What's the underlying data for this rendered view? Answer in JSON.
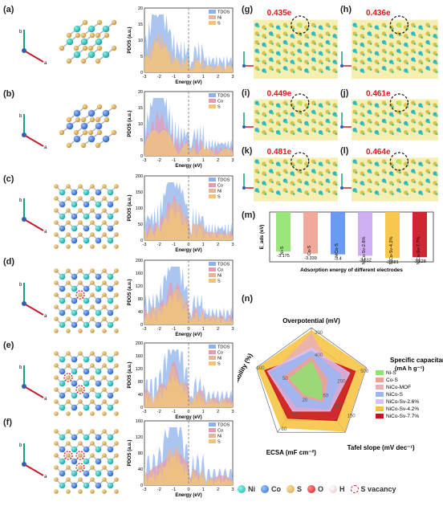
{
  "panel_labels": [
    "(a)",
    "(b)",
    "(c)",
    "(d)",
    "(e)",
    "(f)",
    "(g)",
    "(h)",
    "(i)",
    "(j)",
    "(k)",
    "(l)",
    "(m)",
    "(n)"
  ],
  "axes_labels": {
    "b": "b",
    "a": "a",
    "c": "c"
  },
  "pdos": {
    "ylabel": "PDOS (a.u.)",
    "xlabel": "Energy (eV)",
    "xticks": [
      "-3",
      "-2",
      "-1",
      "0",
      "1",
      "2",
      "3"
    ],
    "panels": [
      {
        "legend": [
          "TDOS",
          "Ni",
          "S"
        ],
        "yticks": [
          "0",
          "5",
          "10",
          "15",
          "20"
        ]
      },
      {
        "legend": [
          "TDOS",
          "Co",
          "S"
        ],
        "yticks": [
          "0",
          "5",
          "10",
          "15",
          "20"
        ]
      },
      {
        "legend": [
          "TDOS",
          "Co",
          "Ni",
          "S"
        ],
        "yticks": [
          "0",
          "50",
          "100",
          "150",
          "200"
        ]
      },
      {
        "legend": [
          "TDOS",
          "Co",
          "Ni",
          "S"
        ],
        "yticks": [
          "0",
          "40",
          "80",
          "120",
          "160",
          "200"
        ]
      },
      {
        "legend": [
          "TDOS",
          "Co",
          "Ni",
          "S"
        ],
        "yticks": [
          "0",
          "40",
          "80",
          "120",
          "160",
          "200"
        ]
      },
      {
        "legend": [
          "TDOS",
          "Co",
          "Ni",
          "S"
        ],
        "yticks": [
          "0",
          "40",
          "80",
          "120",
          "160"
        ]
      }
    ]
  },
  "charge": [
    {
      "panel": "(g)",
      "value": "0.435e"
    },
    {
      "panel": "(h)",
      "value": "0.436e"
    },
    {
      "panel": "(i)",
      "value": "0.449e"
    },
    {
      "panel": "(j)",
      "value": "0.461e"
    },
    {
      "panel": "(k)",
      "value": "0.481e"
    },
    {
      "panel": "(l)",
      "value": "0.464e"
    }
  ],
  "chart_data": [
    {
      "type": "bar",
      "title": "",
      "xlabel": "Adsorption energy of different electrodes",
      "ylabel": "E_ads (eV)",
      "categories": [
        "Ni-S",
        "Co-S",
        "NiCo-S",
        "NiCo-Sv-2.6%",
        "NiCo-Sv-4.2%",
        "NiCo-Sv-7.7%"
      ],
      "values": [
        -3.175,
        -3.339,
        -3.4,
        -3.512,
        -3.681,
        -3.628
      ],
      "value_labels": [
        "-3.175",
        "-3.339",
        "-3.4",
        "-3.512",
        "-3.681",
        "-3.628"
      ],
      "colors": [
        "#8fe36f",
        "#f0a090",
        "#5b8ff0",
        "#c9a6f0",
        "#f7c13b",
        "#c8101e"
      ]
    },
    {
      "type": "radar",
      "axes": [
        "Overpotential (mV)",
        "Specific capacitance (mA h g⁻¹)",
        "Tafel slope (mV dec⁻¹)",
        "ECSA (mF cm⁻²)",
        "Stability (%)"
      ],
      "tick_labels": {
        "overpotential": [
          "300",
          "400"
        ],
        "capacitance": [
          "200",
          "500"
        ],
        "tafel": [
          "50",
          "100",
          "150"
        ],
        "ecsa": [
          "20",
          "40",
          "60"
        ],
        "stability": [
          "50",
          "100"
        ]
      },
      "series": [
        {
          "name": "Ni-S",
          "color": "#8fe36f",
          "values": [
            0.42,
            0.18,
            0.3,
            0.2,
            0.4
          ]
        },
        {
          "name": "Co-S",
          "color": "#f0a090",
          "values": [
            0.5,
            0.3,
            0.35,
            0.25,
            0.5
          ]
        },
        {
          "name": "NiCo-MOF",
          "color": "#e9b0b8",
          "values": [
            0.9,
            0.45,
            0.7,
            0.35,
            0.7
          ]
        },
        {
          "name": "NiCo-S",
          "color": "#9ab6f2",
          "values": [
            0.6,
            0.55,
            0.5,
            0.45,
            0.75
          ]
        },
        {
          "name": "NiCo-Sv-2.6%",
          "color": "#d9c0f2",
          "values": [
            0.65,
            0.7,
            0.55,
            0.55,
            0.8
          ]
        },
        {
          "name": "NiCo-Sv-4.2%",
          "color": "#f7c13b",
          "values": [
            0.95,
            0.98,
            0.98,
            0.9,
            0.98
          ]
        },
        {
          "name": "NiCo-Sv-7.7%",
          "color": "#c8101e",
          "values": [
            0.55,
            0.8,
            0.75,
            0.7,
            0.85
          ]
        }
      ]
    }
  ],
  "bottom_legend": [
    {
      "label": "Ni",
      "color": "#17b4b0"
    },
    {
      "label": "Co",
      "color": "#2f6fd0"
    },
    {
      "label": "S",
      "color": "#d6a24a"
    },
    {
      "label": "O",
      "color": "#d21c1c"
    },
    {
      "label": "H",
      "color": "#f3d4d4"
    },
    {
      "label": "S vacancy",
      "color": "#c8101e"
    }
  ]
}
